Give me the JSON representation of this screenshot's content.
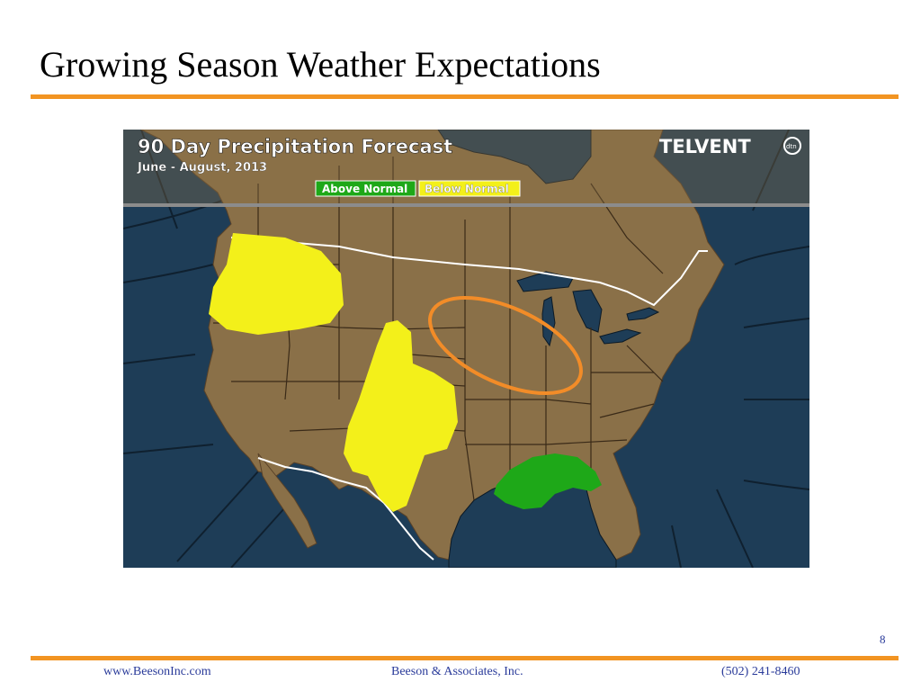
{
  "slide": {
    "title": "Growing Season Weather Expectations",
    "page_number": "8"
  },
  "map": {
    "title": "90 Day Precipitation Forecast",
    "subtitle": "June - August, 2013",
    "logo_text": "TELVENT",
    "logo_badge": "dtn",
    "legend": {
      "above_normal": "Above Normal",
      "below_normal": "Below Normal"
    },
    "colors": {
      "ocean": "#1e3d57",
      "land": "#8a7048",
      "above_normal": "#1ea818",
      "below_normal": "#f3f01a",
      "highlight_ring": "#f28c28"
    }
  },
  "footer": {
    "website": "www.BeesonInc.com",
    "company": "Beeson & Associates, Inc.",
    "phone": "(502) 241-8460"
  }
}
